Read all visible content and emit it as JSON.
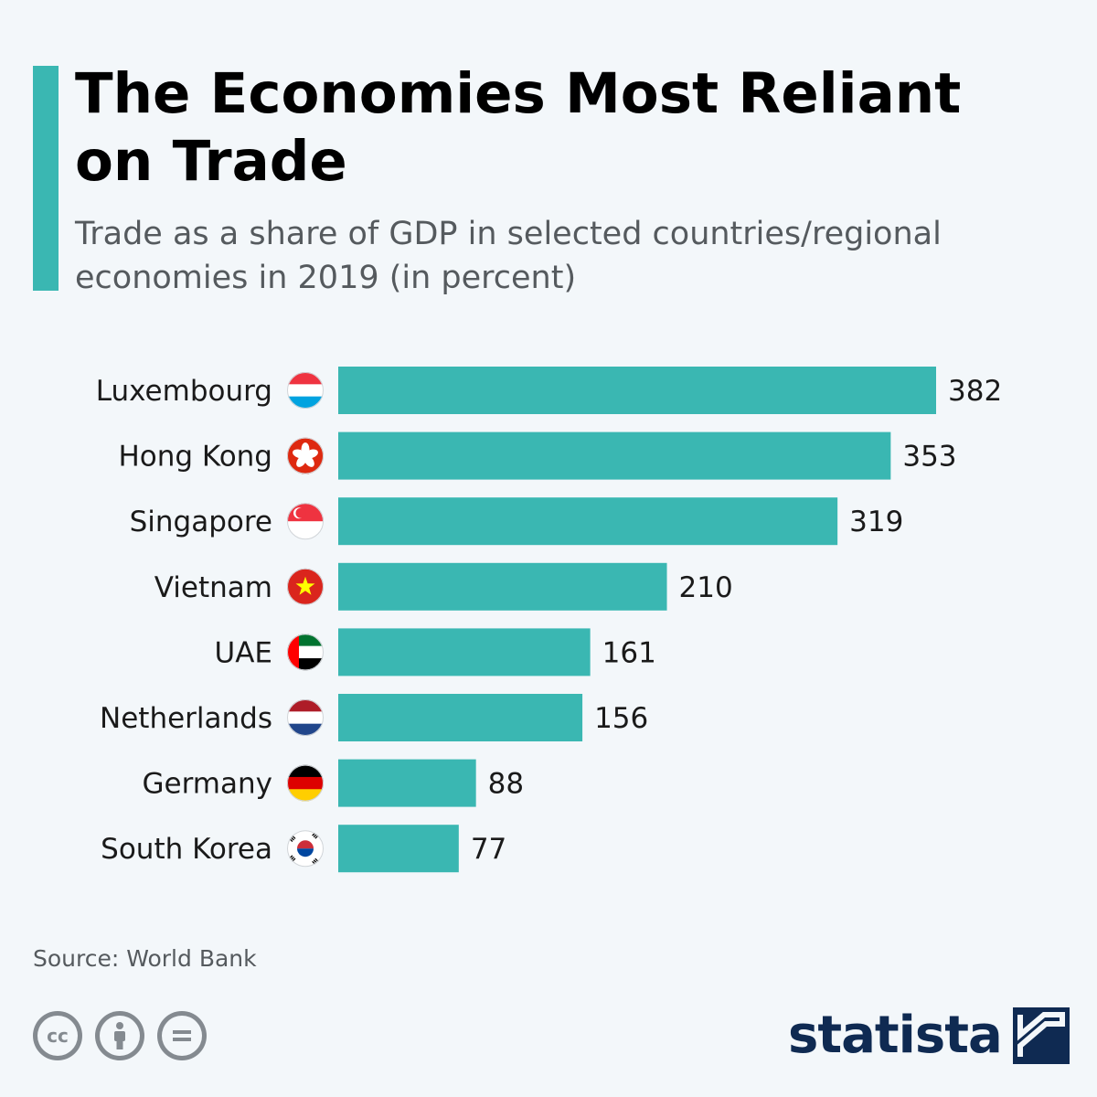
{
  "header": {
    "title": "The Economies Most Reliant on Trade",
    "subtitle": "Trade as a share of GDP in selected countries/regional economies in 2019 (in percent)"
  },
  "colors": {
    "accent": "#3ab7b2",
    "bar": "#3ab7b2",
    "logo": "#0f2a52"
  },
  "chart_data": {
    "type": "bar",
    "orientation": "horizontal",
    "categories": [
      "Luxembourg",
      "Hong Kong",
      "Singapore",
      "Vietnam",
      "UAE",
      "Netherlands",
      "Germany",
      "South Korea"
    ],
    "values": [
      382,
      353,
      319,
      210,
      161,
      156,
      88,
      77
    ],
    "flags": [
      "luxembourg-flag-icon",
      "hong-kong-flag-icon",
      "singapore-flag-icon",
      "vietnam-flag-icon",
      "uae-flag-icon",
      "netherlands-flag-icon",
      "germany-flag-icon",
      "south-korea-flag-icon"
    ],
    "grid": false,
    "legend": "none"
  },
  "footer": {
    "source": "Source: World Bank",
    "license_icons": [
      "cc-icon",
      "attribution-icon",
      "no-derivatives-icon"
    ],
    "license_cc_text": "cc",
    "logo": "statista"
  }
}
